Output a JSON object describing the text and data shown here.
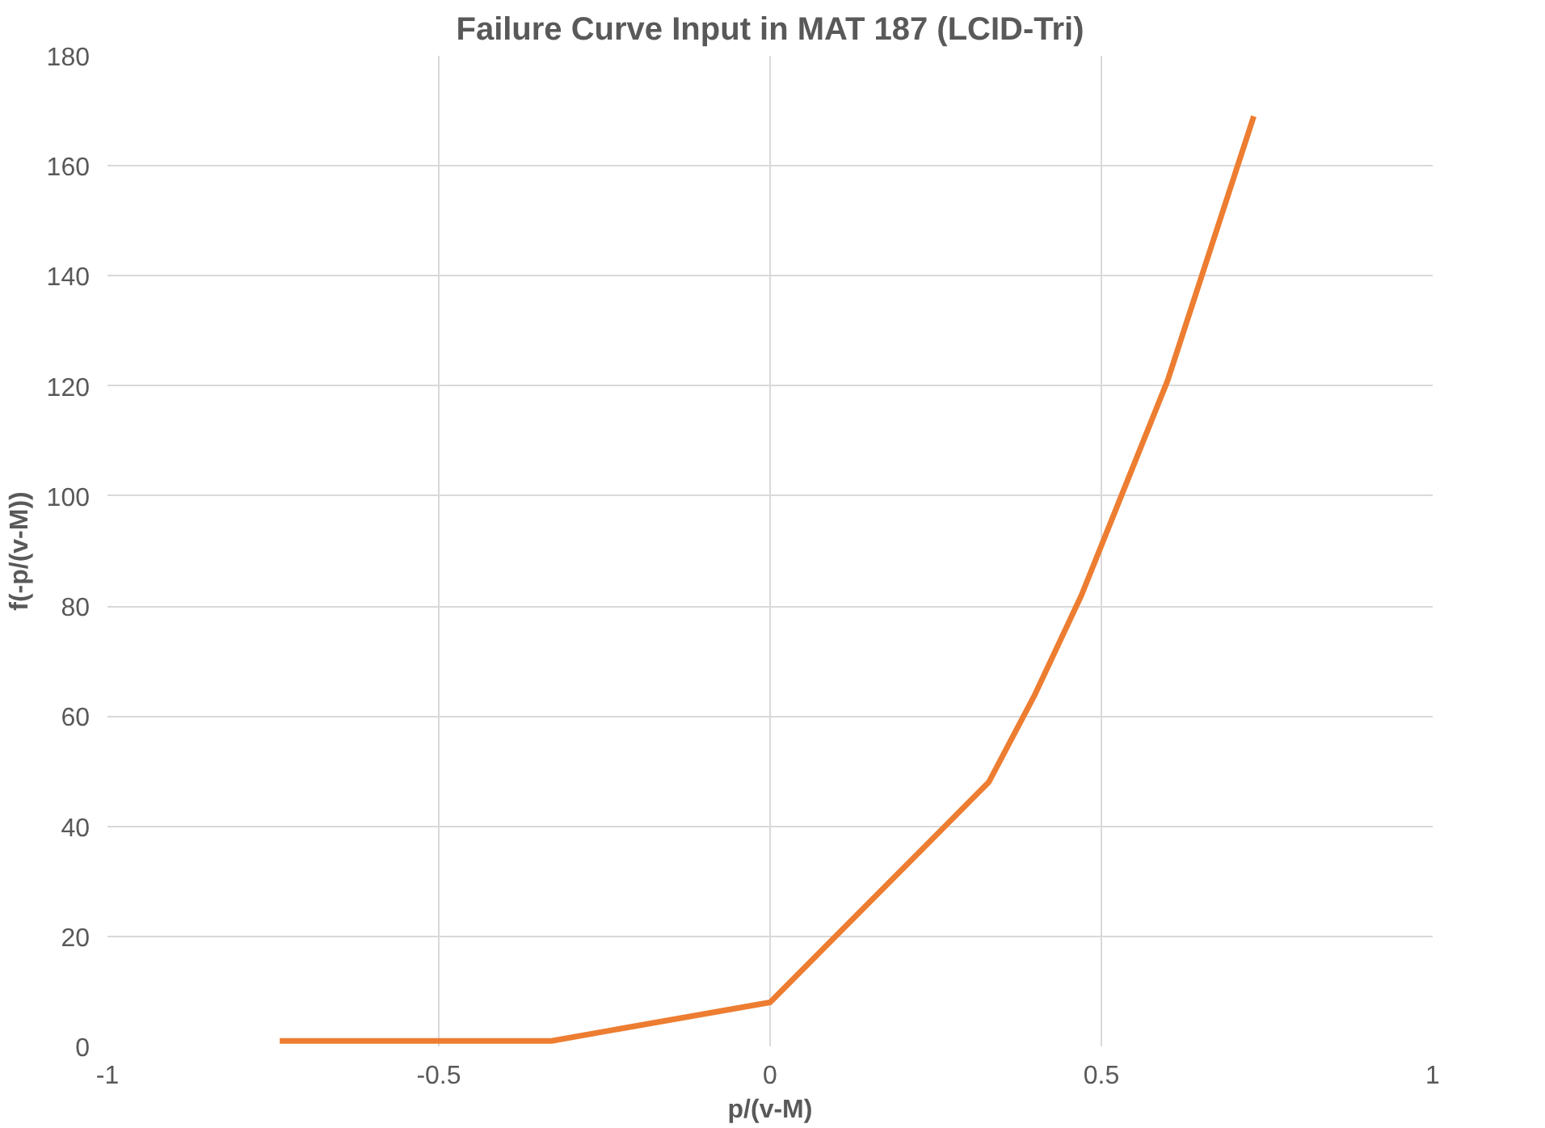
{
  "chart_data": {
    "type": "line",
    "title": "Failure Curve Input in MAT 187 (LCID-Tri)",
    "xlabel": "p/(v-M)",
    "ylabel": "f(-p/(v-M))",
    "series": [
      {
        "color": "#ed7d31",
        "x": [
          -0.74,
          -0.33,
          0,
          0.33,
          0.4,
          0.47,
          0.53,
          0.6,
          0.73
        ],
        "values": [
          1,
          1,
          8,
          48,
          64,
          82,
          100,
          121,
          169
        ]
      }
    ],
    "xlim": [
      -1,
      1
    ],
    "xticks": [
      -1,
      -0.5,
      0,
      0.5,
      1
    ],
    "ylim": [
      0,
      180
    ],
    "yticks": [
      0,
      20,
      40,
      60,
      80,
      100,
      120,
      140,
      160,
      180
    ],
    "grid": true,
    "marker": "none",
    "line_style": "solid"
  }
}
